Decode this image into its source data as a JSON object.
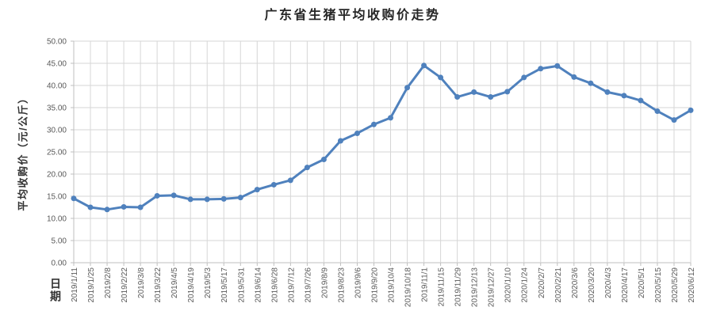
{
  "chart_data": {
    "type": "line",
    "title": "广东省生猪平均收购价走势",
    "xlabel": "日期",
    "ylabel": "平均收购价（元/公斤）",
    "ylim": [
      0,
      50
    ],
    "ytick_step": 5,
    "y_tick_labels": [
      "0.00",
      "5.00",
      "10.00",
      "15.00",
      "20.00",
      "25.00",
      "30.00",
      "35.00",
      "40.00",
      "45.00",
      "50.00"
    ],
    "grid": true,
    "legend": "none",
    "marker": "circle",
    "line_color": "#4F81BD",
    "grid_color": "#D6D6D6",
    "axis_color": "#BFBFBF",
    "tick_label_color": "#595959",
    "categories": [
      "2019/1/11",
      "2019/1/25",
      "2019/2/8",
      "2019/2/22",
      "2019/3/8",
      "2019/3/22",
      "2019/4/5",
      "2019/4/19",
      "2019/5/3",
      "2019/5/17",
      "2019/5/31",
      "2019/6/14",
      "2019/6/28",
      "2019/7/12",
      "2019/7/26",
      "2019/8/9",
      "2019/8/23",
      "2019/9/6",
      "2019/9/20",
      "2019/10/4",
      "2019/10/18",
      "2019/11/1",
      "2019/11/15",
      "2019/11/29",
      "2019/12/13",
      "2019/12/27",
      "2020/1/10",
      "2020/1/24",
      "2020/2/7",
      "2020/2/21",
      "2020/3/6",
      "2020/3/20",
      "2020/4/3",
      "2020/4/17",
      "2020/5/1",
      "2020/5/15",
      "2020/5/29",
      "2020/6/12"
    ],
    "values": [
      14.5,
      12.5,
      12.0,
      12.6,
      12.5,
      15.1,
      15.2,
      14.3,
      14.3,
      14.4,
      14.7,
      16.5,
      17.6,
      18.6,
      21.5,
      23.3,
      27.5,
      29.2,
      31.2,
      32.7,
      39.5,
      44.5,
      41.8,
      37.4,
      38.5,
      37.4,
      38.6,
      41.8,
      43.8,
      44.4,
      41.9,
      40.5,
      38.5,
      37.7,
      36.6,
      34.2,
      32.2,
      34.4
    ]
  }
}
